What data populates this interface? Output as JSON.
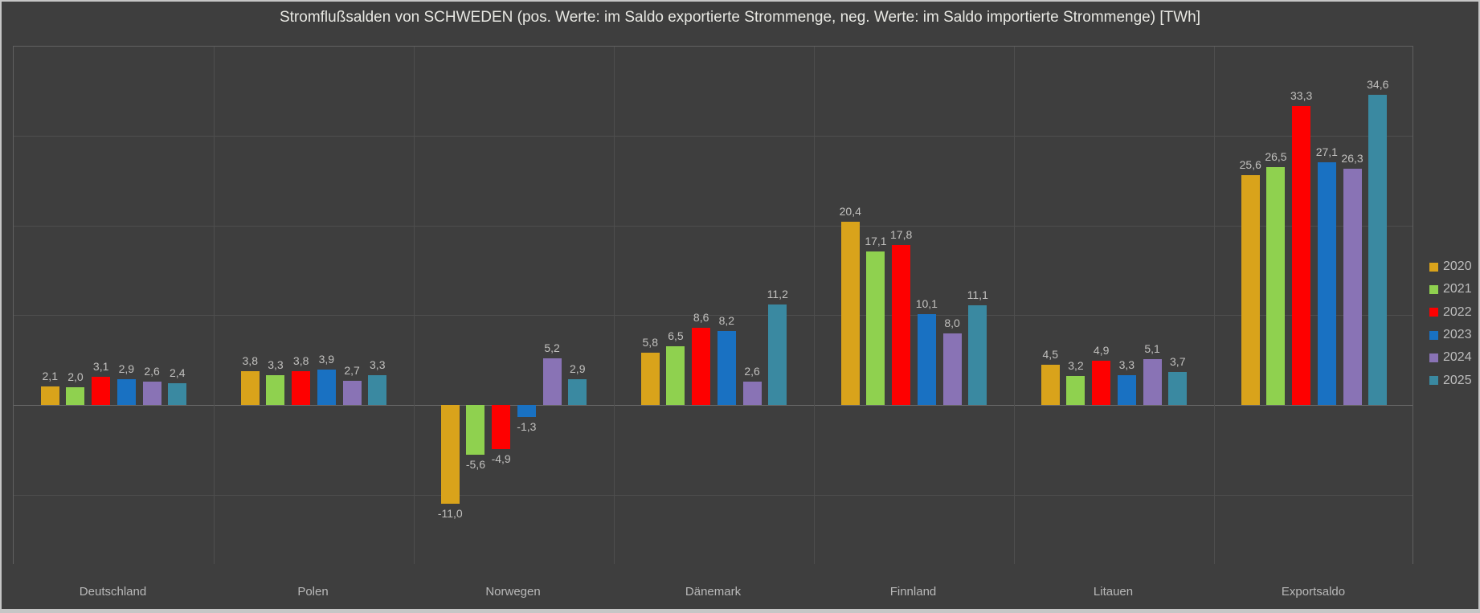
{
  "title": "Stromflußsalden von SCHWEDEN (pos. Werte: im Saldo exportierte Strommenge, neg. Werte: im Saldo importierte Strommenge) [TWh]",
  "colors": {
    "background": "#3E3E3E",
    "frame": "#C6C6C6",
    "plot_border": "#616161",
    "gridline": "#4E4E4E",
    "zero_line": "#6B6B6B",
    "title_text": "#E7E7E2",
    "value_label_text": "#C1C0BE",
    "axis_label_text": "#B9B9B9",
    "legend_text": "#BDBDBD"
  },
  "chart_data": {
    "type": "bar",
    "title": "Stromflußsalden von SCHWEDEN (pos. Werte: im Saldo exportierte Strommenge, neg. Werte: im Saldo importierte Strommenge) [TWh]",
    "xlabel": "",
    "ylabel": "TWh",
    "categories": [
      "Deutschland",
      "Polen",
      "Norwegen",
      "Dänemark",
      "Finnland",
      "Litauen",
      "Exportsaldo"
    ],
    "series": [
      {
        "name": "2020",
        "color": "#D9A31B",
        "values": [
          2.1,
          3.8,
          -11.0,
          5.8,
          20.4,
          4.5,
          25.6
        ]
      },
      {
        "name": "2021",
        "color": "#8FD14F",
        "values": [
          2.0,
          3.3,
          -5.6,
          6.5,
          17.1,
          3.2,
          26.5
        ]
      },
      {
        "name": "2022",
        "color": "#FE0000",
        "values": [
          3.1,
          3.8,
          -4.9,
          8.6,
          17.8,
          4.9,
          33.3
        ]
      },
      {
        "name": "2023",
        "color": "#1971C2",
        "values": [
          2.9,
          3.9,
          -1.3,
          8.2,
          10.1,
          3.3,
          27.1
        ]
      },
      {
        "name": "2024",
        "color": "#8973B5",
        "values": [
          2.6,
          2.7,
          5.2,
          2.6,
          8.0,
          5.1,
          26.3
        ]
      },
      {
        "name": "2025",
        "color": "#3A89A1",
        "values": [
          2.4,
          3.3,
          2.9,
          11.2,
          11.1,
          3.7,
          34.6
        ]
      }
    ],
    "value_labels": {
      "visible": true,
      "decimal_separator": ",",
      "decimals": 1
    },
    "ylim": [
      -17.5,
      40
    ],
    "gridline_values": [
      30,
      20,
      10,
      0,
      -10
    ],
    "y_tick_labels_visible": false,
    "grid": true,
    "legend_position": "right",
    "legend_entries": [
      "2020",
      "2021",
      "2022",
      "2023",
      "2024",
      "2025"
    ]
  }
}
